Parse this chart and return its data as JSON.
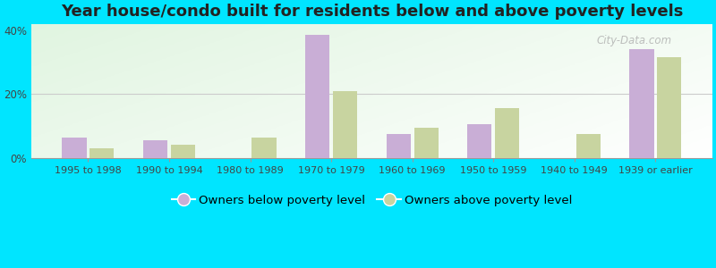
{
  "title": "Year house/condo built for residents below and above poverty levels",
  "categories": [
    "1995 to 1998",
    "1990 to 1994",
    "1980 to 1989",
    "1970 to 1979",
    "1960 to 1969",
    "1950 to 1959",
    "1940 to 1949",
    "1939 or earlier"
  ],
  "below_poverty": [
    6.5,
    5.5,
    0.0,
    38.5,
    7.5,
    10.5,
    0.0,
    34.0
  ],
  "above_poverty": [
    3.0,
    4.0,
    6.5,
    21.0,
    9.5,
    15.5,
    7.5,
    31.5
  ],
  "bar_color_below": "#c9aed6",
  "bar_color_above": "#c8d4a0",
  "outer_background": "#00e5ff",
  "ylim": [
    0,
    42
  ],
  "yticks": [
    0,
    20,
    40
  ],
  "ytick_labels": [
    "0%",
    "20%",
    "40%"
  ],
  "legend_below": "Owners below poverty level",
  "legend_above": "Owners above poverty level",
  "bar_width": 0.3,
  "title_fontsize": 13,
  "tick_fontsize": 8,
  "legend_fontsize": 9.5,
  "watermark": "City-Data.com"
}
